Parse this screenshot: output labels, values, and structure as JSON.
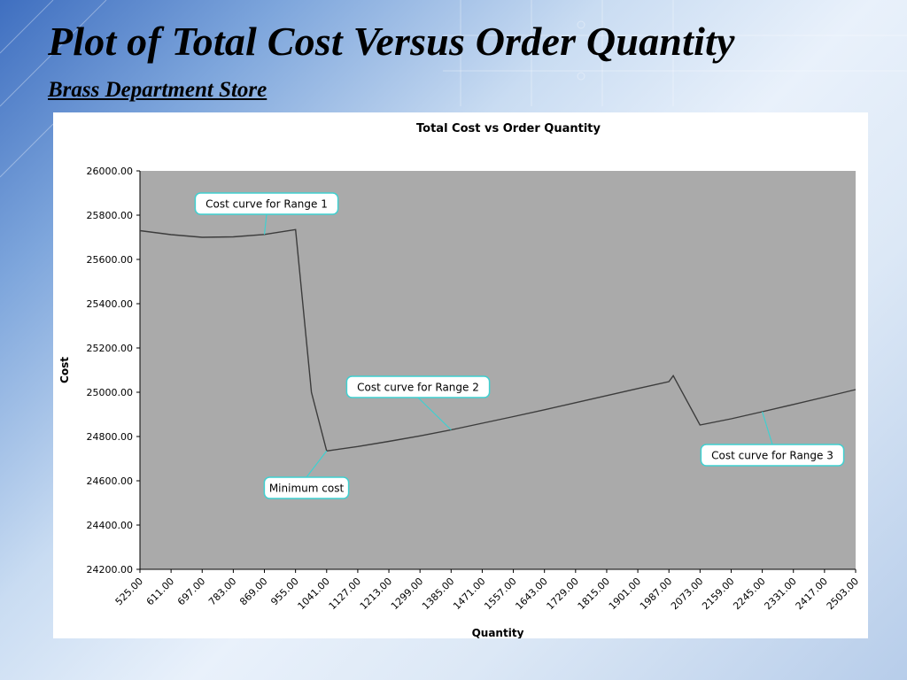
{
  "slide": {
    "title": "Plot of Total Cost Versus Order Quantity",
    "subtitle": "Brass Department Store"
  },
  "colors": {
    "plot_area": "#aaaaaa",
    "line": "#3c3c3c",
    "callout_border": "#3fd0d0",
    "callout_fill": "#ffffff"
  },
  "chart_data": {
    "type": "line",
    "title": "Total Cost vs Order Quantity",
    "xlabel": "Quantity",
    "ylabel": "Cost",
    "ylim": [
      24200,
      26000
    ],
    "y_ticks": [
      "26000.00",
      "25800.00",
      "25600.00",
      "25400.00",
      "25200.00",
      "25000.00",
      "24800.00",
      "24600.00",
      "24400.00",
      "24200.00"
    ],
    "categories": [
      "525.00",
      "611.00",
      "697.00",
      "783.00",
      "869.00",
      "955.00",
      "1041.00",
      "1127.00",
      "1213.00",
      "1299.00",
      "1385.00",
      "1471.00",
      "1557.00",
      "1643.00",
      "1729.00",
      "1815.00",
      "1901.00",
      "1987.00",
      "2073.00",
      "2159.00",
      "2245.00",
      "2331.00",
      "2417.00",
      "2503.00"
    ],
    "grid": false,
    "legend": "none",
    "series": [
      {
        "x": [
          525,
          611,
          697,
          783,
          869,
          955,
          999,
          1041,
          1127,
          1213,
          1299,
          1385,
          1471,
          1557,
          1643,
          1729,
          1815,
          1901,
          1987,
          1999,
          2073,
          2159,
          2245,
          2331,
          2417,
          2503
        ],
        "values": [
          25730,
          25712,
          25700,
          25702,
          25713,
          25735,
          25000,
          24735,
          24755,
          24778,
          24803,
          24830,
          24860,
          24890,
          24921,
          24953,
          24985,
          25017,
          25048,
          25075,
          24852,
          24880,
          24912,
          24945,
          24978,
          25012
        ]
      }
    ],
    "annotations": [
      {
        "text": "Cost curve for Range 1",
        "target_x": 869,
        "target_y": 25713
      },
      {
        "text": "Cost curve for Range 2",
        "target_x": 1385,
        "target_y": 24830
      },
      {
        "text": "Minimum cost",
        "target_x": 1041,
        "target_y": 24735
      },
      {
        "text": "Cost curve for Range 3",
        "target_x": 2245,
        "target_y": 24912
      }
    ]
  }
}
